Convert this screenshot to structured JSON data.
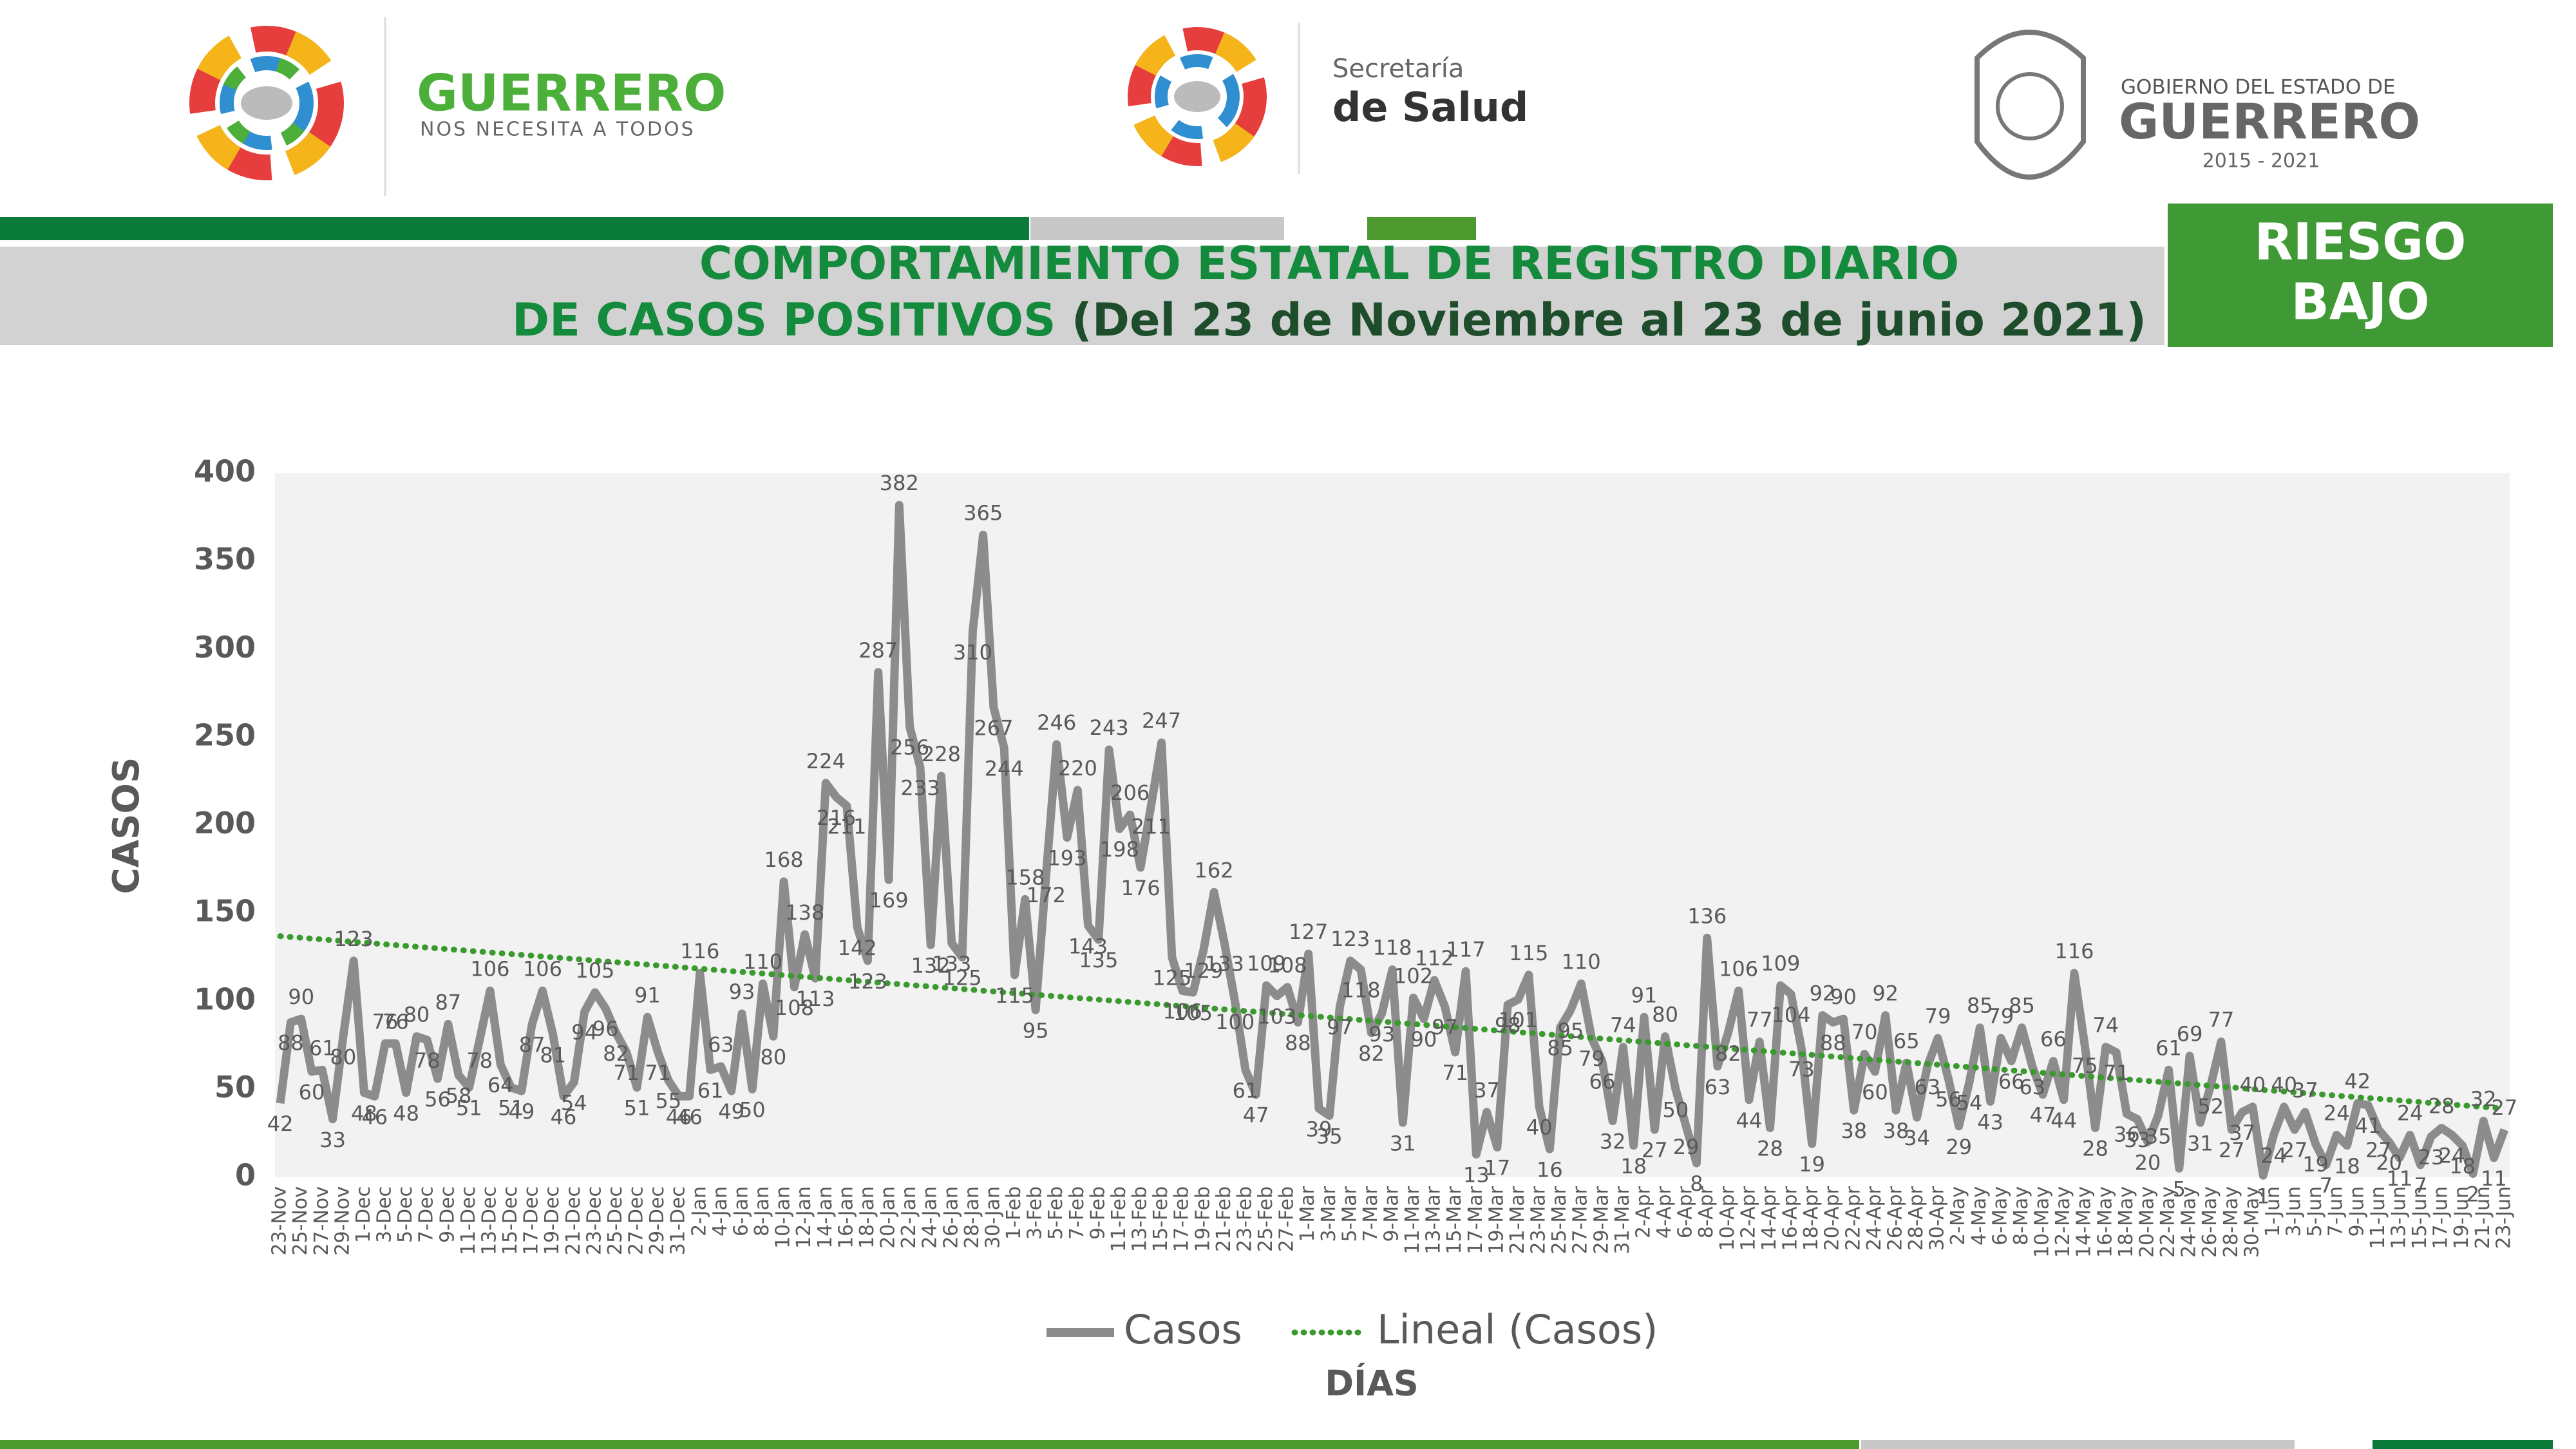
{
  "header": {
    "logo_left": [
      "GUERRERO",
      "NOS NECESITA A TODOS"
    ],
    "logo_center": [
      "Secretaría",
      "de Salud"
    ],
    "logo_right": [
      "GOBIERNO DEL ESTADO DE",
      "GUERRERO",
      "2015 - 2021"
    ]
  },
  "title": [
    "COMPORTAMIENTO ESTATAL DE REGISTRO DIARIO",
    "DE CASOS POSITIVOS",
    "(Del 23 de Noviembre al 23 de junio 2021)"
  ],
  "risk": [
    "RIESGO",
    "BAJO"
  ],
  "chart_data": {
    "type": "line",
    "ylabel": "CASOS",
    "xlabel": "DÍAS",
    "ylim": [
      0,
      400
    ],
    "yticks": [
      0,
      50,
      100,
      150,
      200,
      250,
      300,
      350,
      400
    ],
    "grid": false,
    "categories": [
      "23-Nov",
      null,
      "25-Nov",
      null,
      "27-Nov",
      null,
      "29-Nov",
      null,
      "1-Dec",
      null,
      "3-Dec",
      null,
      "5-Dec",
      null,
      "7-Dec",
      null,
      "9-Dec",
      null,
      "11-Dec",
      null,
      "13-Dec",
      null,
      "15-Dec",
      null,
      "17-Dec",
      null,
      "19-Dec",
      null,
      "21-Dec",
      null,
      "23-Dec",
      null,
      "25-Dec",
      null,
      "27-Dec",
      null,
      "29-Dec",
      null,
      "31-Dec",
      null,
      "2-Jan",
      null,
      "4-Jan",
      null,
      "6-Jan",
      null,
      "8-Jan",
      null,
      "10-Jan",
      null,
      "12-Jan",
      null,
      "14-Jan",
      null,
      "16-Jan",
      null,
      "18-Jan",
      null,
      "20-Jan",
      null,
      "22-Jan",
      null,
      "24-Jan",
      null,
      "26-Jan",
      null,
      "28-Jan",
      null,
      "30-Jan",
      null,
      "1-Feb",
      null,
      "3-Feb",
      null,
      "5-Feb",
      null,
      "7-Feb",
      null,
      "9-Feb",
      null,
      "11-Feb",
      null,
      "13-Feb",
      null,
      "15-Feb",
      null,
      "17-Feb",
      null,
      "19-Feb",
      null,
      "21-Feb",
      null,
      "23-Feb",
      null,
      "25-Feb",
      null,
      "27-Feb",
      null,
      "1-Mar",
      null,
      "3-Mar",
      null,
      "5-Mar",
      null,
      "7-Mar",
      null,
      "9-Mar",
      null,
      "11-Mar",
      null,
      "13-Mar",
      null,
      "15-Mar",
      null,
      "17-Mar",
      null,
      "19-Mar",
      null,
      "21-Mar",
      null,
      "23-Mar",
      null,
      "25-Mar",
      null,
      "27-Mar",
      null,
      "29-Mar",
      null,
      "31-Mar",
      null,
      "2-Apr",
      null,
      "4-Apr",
      null,
      "6-Apr",
      null,
      "8-Apr",
      null,
      "10-Apr",
      null,
      "12-Apr",
      null,
      "14-Apr",
      null,
      "16-Apr",
      null,
      "18-Apr",
      null,
      "20-Apr",
      null,
      "22-Apr",
      null,
      "24-Apr",
      null,
      "26-Apr",
      null,
      "28-Apr",
      null,
      "30-Apr",
      null,
      "2-May",
      null,
      "4-May",
      null,
      "6-May",
      null,
      "8-May",
      null,
      "10-May",
      null,
      "12-May",
      null,
      "14-May",
      null,
      "16-May",
      null,
      "18-May",
      null,
      "20-May",
      null,
      "22-May",
      null,
      "24-May",
      null,
      "26-May",
      null,
      "28-May",
      null,
      "30-May",
      null,
      "1-Jun",
      null,
      "3-Jun",
      null,
      "5-Jun",
      null,
      "7-Jun",
      null,
      "9-Jun",
      null,
      "11-Jun",
      null,
      "13-Jun",
      null,
      "15-Jun",
      null,
      "17-Jun",
      null,
      "19-Jun",
      null,
      "21-Jun",
      null,
      "23-Jun"
    ],
    "series": [
      {
        "name": "Casos",
        "color": "#8c8c8c",
        "values": [
          42,
          88,
          90,
          60,
          61,
          33,
          80,
          123,
          48,
          46,
          76,
          76,
          48,
          80,
          78,
          56,
          87,
          58,
          51,
          78,
          106,
          64,
          51,
          49,
          87,
          106,
          81,
          46,
          54,
          94,
          105,
          96,
          82,
          71,
          51,
          91,
          71,
          55,
          46,
          46,
          116,
          61,
          63,
          49,
          93,
          50,
          110,
          80,
          168,
          108,
          138,
          113,
          224,
          216,
          211,
          142,
          123,
          287,
          169,
          382,
          256,
          233,
          132,
          228,
          133,
          125,
          310,
          365,
          267,
          244,
          115,
          158,
          95,
          172,
          246,
          193,
          220,
          143,
          135,
          243,
          198,
          206,
          176,
          211,
          247,
          125,
          106,
          105,
          129,
          162,
          133,
          100,
          61,
          47,
          109,
          103,
          108,
          88,
          127,
          39,
          35,
          97,
          123,
          118,
          82,
          93,
          118,
          31,
          102,
          90,
          112,
          97,
          71,
          117,
          13,
          37,
          17,
          98,
          101,
          115,
          40,
          16,
          85,
          95,
          110,
          79,
          66,
          32,
          74,
          18,
          91,
          27,
          80,
          50,
          29,
          8,
          136,
          63,
          82,
          106,
          44,
          77,
          28,
          109,
          104,
          73,
          19,
          92,
          88,
          90,
          38,
          70,
          60,
          92,
          38,
          65,
          34,
          63,
          79,
          56,
          29,
          54,
          85,
          43,
          79,
          66,
          85,
          63,
          47,
          66,
          44,
          116,
          75,
          28,
          74,
          71,
          36,
          33,
          20,
          35,
          61,
          5,
          69,
          31,
          52,
          77,
          27,
          37,
          40,
          1,
          24,
          40,
          27,
          37,
          19,
          7,
          24,
          18,
          42,
          41,
          27,
          20,
          11,
          24,
          7,
          23,
          28,
          24,
          18,
          2,
          32,
          11,
          27
        ]
      },
      {
        "name": "Lineal (Casos)",
        "color": "#3a9a2e",
        "style": "dotted",
        "start": 137,
        "end": 39
      }
    ]
  }
}
